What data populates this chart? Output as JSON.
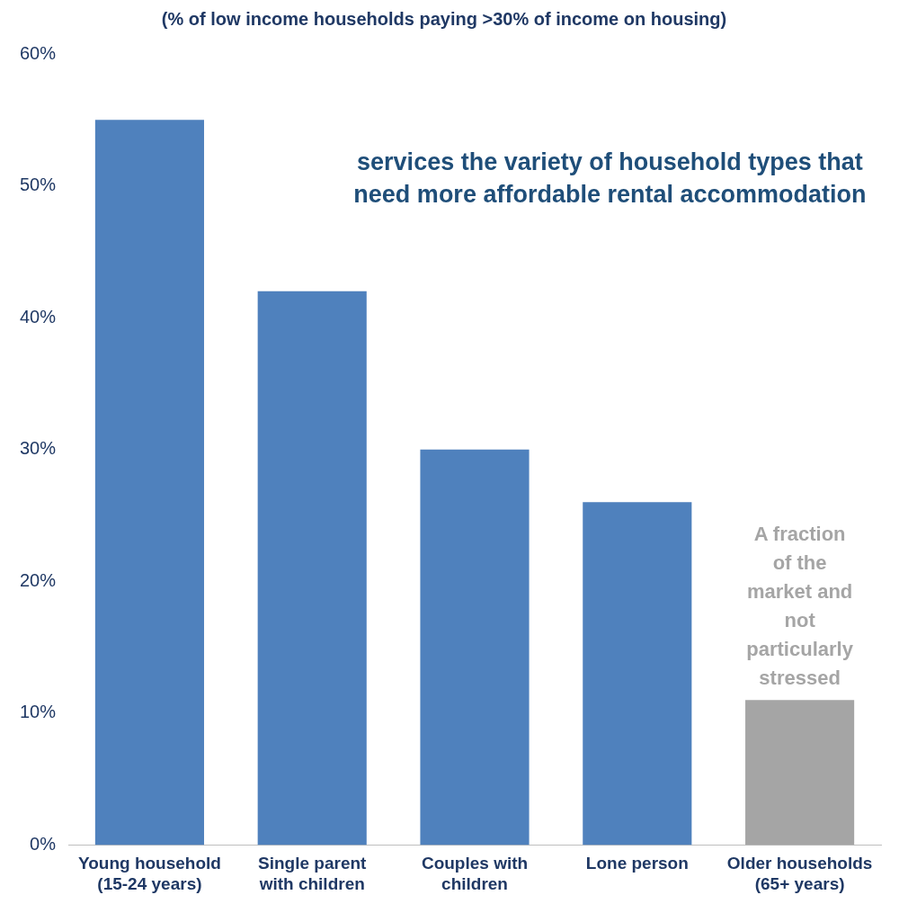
{
  "chart_data": {
    "type": "bar",
    "title": "(% of low income households paying >30% of income on housing)",
    "categories": [
      "Young household (15-24 years)",
      "Single parent with children",
      "Couples with children",
      "Lone person",
      "Older households (65+ years)"
    ],
    "values": [
      55,
      42,
      30,
      26,
      11
    ],
    "colors": [
      "#4f81bd",
      "#4f81bd",
      "#4f81bd",
      "#4f81bd",
      "#a5a5a5"
    ],
    "ylim": [
      0,
      60
    ],
    "yticks": [
      {
        "value": 0,
        "label": "0%"
      },
      {
        "value": 10,
        "label": "10%"
      },
      {
        "value": 20,
        "label": "20%"
      },
      {
        "value": 30,
        "label": "30%"
      },
      {
        "value": 40,
        "label": "40%"
      },
      {
        "value": 50,
        "label": "50%"
      },
      {
        "value": 60,
        "label": "60%"
      }
    ],
    "grid": false,
    "legend": false,
    "annotations": [
      "services the variety of household types that need more affordable rental accommodation",
      {
        "text": "A fraction of the market and not particularly stressed",
        "x": "Older households (65+ years)",
        "y": 11
      }
    ]
  }
}
